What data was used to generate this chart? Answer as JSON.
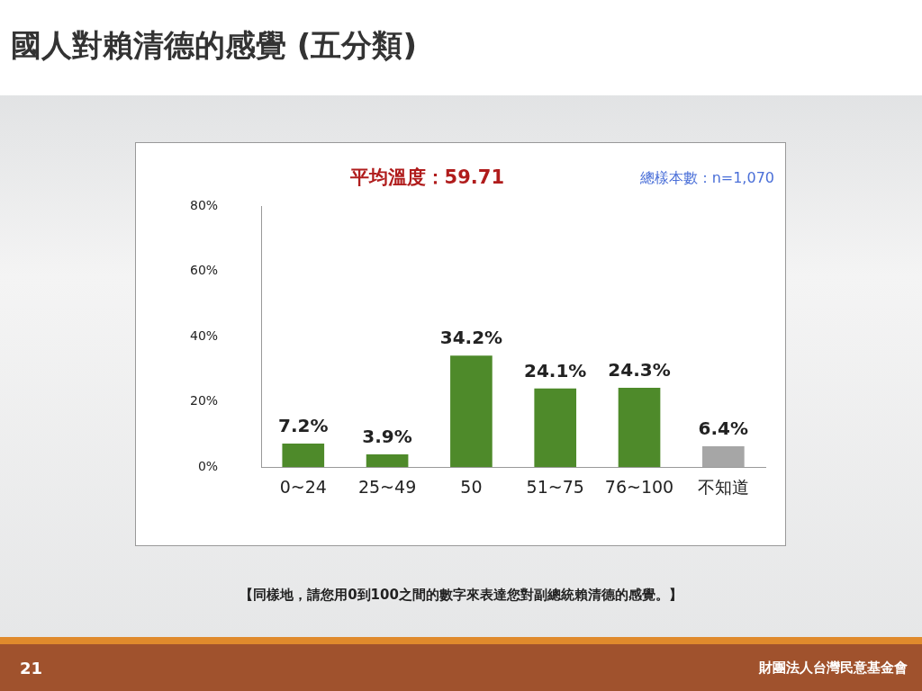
{
  "chart_data": {
    "type": "bar",
    "title": "國人對賴清德的感覺 (五分類)",
    "categories": [
      "0~24",
      "25~49",
      "50",
      "51~75",
      "76~100",
      "不知道"
    ],
    "values": [
      7.2,
      3.9,
      34.2,
      24.1,
      24.3,
      6.4
    ],
    "colors": [
      "#4e8a2a",
      "#4e8a2a",
      "#4e8a2a",
      "#4e8a2a",
      "#4e8a2a",
      "#a6a6a6"
    ],
    "value_labels": [
      "7.2%",
      "3.9%",
      "34.2%",
      "24.1%",
      "24.3%",
      "6.4%"
    ],
    "ylim": [
      0,
      80
    ],
    "yticks": [
      {
        "value": 0,
        "label": "0%"
      },
      {
        "value": 20,
        "label": "20%"
      },
      {
        "value": 40,
        "label": "40%"
      },
      {
        "value": 60,
        "label": "60%"
      },
      {
        "value": 80,
        "label": "80%"
      }
    ],
    "annotations": [
      "平均溫度：59.71",
      "總樣本數：n=1,070",
      "【同樣地，請您用0到100之間的數字來表達您對副總統賴清德的感覺。】",
      "21",
      "財團法人台灣民意基金會"
    ]
  }
}
